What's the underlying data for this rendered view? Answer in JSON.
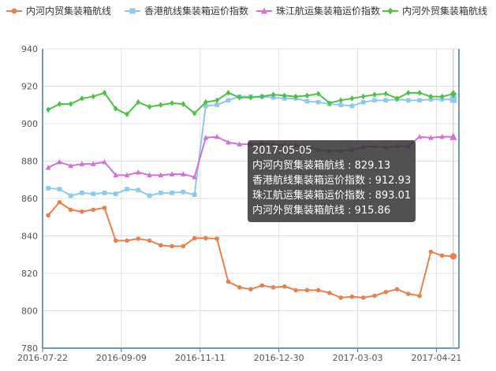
{
  "chart_data": {
    "type": "line",
    "xlabel": "",
    "ylabel": "",
    "ylim": [
      780,
      940
    ],
    "y_ticks": [
      780,
      800,
      820,
      840,
      860,
      880,
      900,
      920,
      940
    ],
    "x_tick_labels": [
      "2016-07-22",
      "2016-09-09",
      "2016-11-11",
      "2016-12-30",
      "2017-03-03",
      "2017-04-21"
    ],
    "x_tick_indices": [
      0,
      7,
      14,
      21,
      28,
      35
    ],
    "grid": true,
    "legend_position": "top",
    "categories_count": 37,
    "series": [
      {
        "name": "内河内贸集装箱航线",
        "color": "#e8804d",
        "marker": "circle",
        "values": [
          851,
          858,
          854,
          853,
          854,
          855,
          837.5,
          837.5,
          838.5,
          837.5,
          835,
          834.5,
          834.5,
          838.8,
          838.8,
          838.5,
          815.5,
          812.5,
          811.5,
          813.5,
          812.5,
          813,
          811,
          811,
          811,
          809.5,
          807,
          807.5,
          807,
          808,
          810,
          811.5,
          809,
          808,
          831.5,
          829.5,
          829.13
        ]
      },
      {
        "name": "香港航线集装箱运价指数",
        "color": "#8dc9ec",
        "marker": "square",
        "values": [
          865.5,
          865,
          861.5,
          863,
          862.5,
          863,
          862.5,
          865,
          864.5,
          861.5,
          863,
          863,
          863.5,
          862,
          909.5,
          910,
          912.5,
          914.5,
          914.5,
          914.5,
          914,
          913.5,
          913.5,
          912,
          911.5,
          910.5,
          910,
          909.5,
          911.5,
          912.5,
          912.5,
          913,
          912.5,
          912.5,
          913,
          913,
          912.93
        ]
      },
      {
        "name": "珠江航运集装箱运价指数",
        "color": "#d173d5",
        "marker": "triangle",
        "values": [
          876.5,
          879.5,
          877.5,
          878.5,
          878.5,
          879.5,
          872.5,
          872.5,
          874,
          872.5,
          872.5,
          873,
          873,
          871.5,
          892.5,
          893,
          890,
          889,
          889,
          889.5,
          889,
          888.5,
          888.5,
          888,
          886,
          885.5,
          885.5,
          886,
          887.5,
          888,
          887.5,
          888,
          888,
          893,
          892.5,
          893,
          893.01
        ]
      },
      {
        "name": "内河外贸集装箱航线",
        "color": "#4dc145",
        "marker": "diamond",
        "values": [
          907.5,
          910.5,
          910.5,
          913.5,
          914.5,
          916.5,
          908,
          905,
          911.5,
          909,
          910,
          911,
          910.5,
          905.5,
          911.5,
          912.5,
          916.5,
          914,
          914,
          914.5,
          915.5,
          915,
          914.5,
          915,
          916,
          911,
          912.5,
          913.5,
          914.5,
          915.5,
          916,
          913.5,
          916.5,
          916.5,
          914.5,
          914.5,
          915.86
        ]
      }
    ],
    "tooltip": {
      "title": "2017-05-05",
      "lines": [
        "内河内贸集装箱航线 : 829.13",
        "香港航线集装箱运价指数 : 912.93",
        "珠江航运集装箱运价指数 : 893.01",
        "内河外贸集装箱航线 : 915.86"
      ]
    }
  }
}
